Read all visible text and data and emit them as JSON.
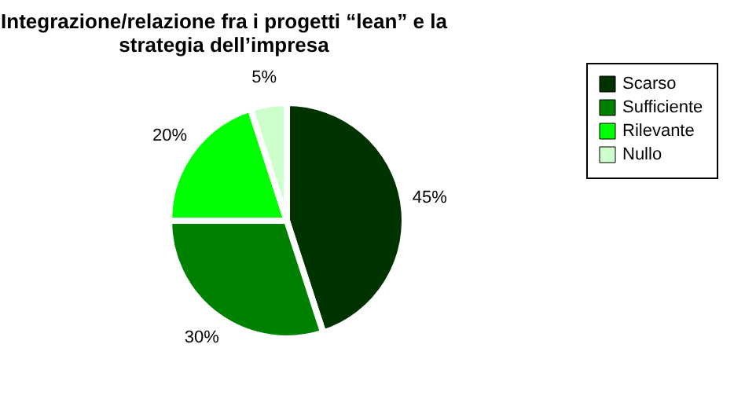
{
  "chart_data": {
    "type": "pie",
    "title": [
      "Integrazione/relazione fra i progetti “lean” e la",
      "strategia dell’impresa"
    ],
    "categories": [
      "Scarso",
      "Sufficiente",
      "Rilevante",
      "Nullo"
    ],
    "values": [
      45,
      30,
      20,
      5
    ],
    "colors": [
      "#003300",
      "#008000",
      "#00ff00",
      "#ccffcc"
    ],
    "value_labels": [
      "45%",
      "30%",
      "20%",
      "5%"
    ],
    "legend": "right"
  }
}
